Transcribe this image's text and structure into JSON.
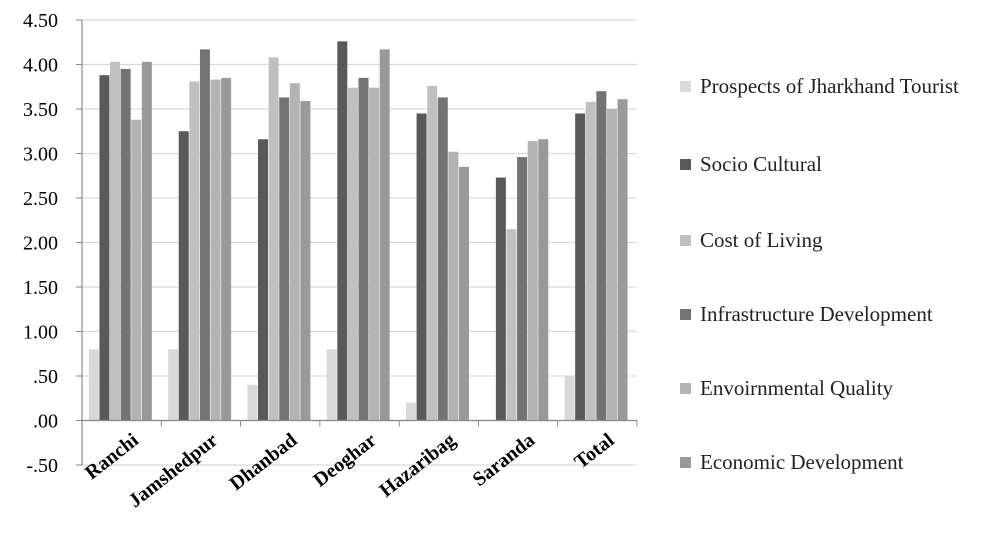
{
  "chart_data": {
    "type": "bar",
    "categories": [
      "Ranchi",
      "Jamshedpur",
      "Dhanbad",
      "Deoghar",
      "Hazaribag",
      "Saranda",
      "Total"
    ],
    "series": [
      {
        "name": "Prospects of Jharkhand Tourist",
        "color": "#d9d9d9",
        "values": [
          0.8,
          0.8,
          0.4,
          0.8,
          0.2,
          0.0,
          0.5
        ]
      },
      {
        "name": "Socio Cultural",
        "color": "#595959",
        "values": [
          3.88,
          3.25,
          3.16,
          4.26,
          3.45,
          2.73,
          3.45
        ]
      },
      {
        "name": "Cost of Living",
        "color": "#c0c0c0",
        "values": [
          4.03,
          3.81,
          4.08,
          3.74,
          3.76,
          2.15,
          3.58
        ]
      },
      {
        "name": "Infrastructure Development",
        "color": "#737373",
        "values": [
          3.95,
          4.17,
          3.63,
          3.85,
          3.63,
          2.96,
          3.7
        ]
      },
      {
        "name": "Envoirnmental Quality",
        "color": "#b3b3b3",
        "values": [
          3.38,
          3.83,
          3.79,
          3.74,
          3.02,
          3.14,
          3.5
        ]
      },
      {
        "name": "Economic Development",
        "color": "#999999",
        "values": [
          4.03,
          3.85,
          3.59,
          4.17,
          2.85,
          3.16,
          3.61
        ]
      }
    ],
    "y_tick_labels": [
      "-.50",
      ".00",
      ".50",
      "1.00",
      "1.50",
      "2.00",
      "2.50",
      "3.00",
      "3.50",
      "4.00",
      "4.50"
    ],
    "ylim": [
      -0.5,
      4.5
    ],
    "grid": true,
    "legend_position": "right"
  }
}
